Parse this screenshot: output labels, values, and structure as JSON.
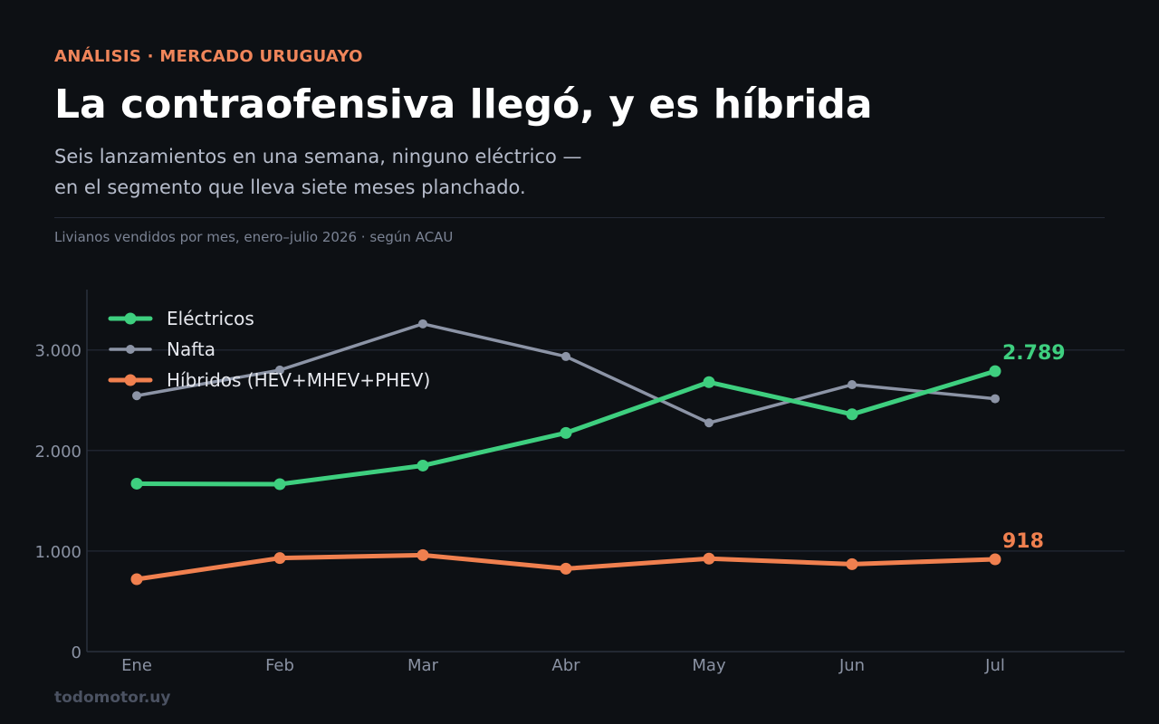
{
  "header": {
    "kicker": "ANÁLISIS · MERCADO URUGUAYO",
    "title": "La contraofensiva llegó, y es híbrida",
    "subtitle_line1": "Seis lanzamientos en una semana, ninguno eléctrico —",
    "subtitle_line2": "en el segmento que lleva siete meses planchado.",
    "source": "Livianos vendidos por mes, enero–julio 2026 · según ACAU"
  },
  "footer": {
    "brand": "todomotor.uy"
  },
  "chart_data": {
    "type": "line",
    "categories": [
      "Ene",
      "Feb",
      "Mar",
      "Abr",
      "May",
      "Jun",
      "Jul"
    ],
    "ylim": [
      0,
      3600
    ],
    "yticks": [
      0,
      1000,
      2000,
      3000
    ],
    "ytick_labels": [
      "0",
      "1.000",
      "2.000",
      "3.000"
    ],
    "grid": true,
    "legend_position": "top-left",
    "series": [
      {
        "name": "Eléctricos",
        "color": "#3ecf7f",
        "values": [
          1670,
          1665,
          1850,
          2175,
          2680,
          2360,
          2789
        ],
        "end_label": "2.789",
        "emphasis": true
      },
      {
        "name": "Nafta",
        "color": "#8c94a6",
        "values": [
          2545,
          2800,
          3260,
          2935,
          2275,
          2655,
          2515
        ],
        "emphasis": false
      },
      {
        "name": "Híbridos (HEV+MHEV+PHEV)",
        "color": "#f0804f",
        "values": [
          720,
          930,
          960,
          825,
          925,
          870,
          918
        ],
        "end_label": "918",
        "emphasis": true
      }
    ]
  }
}
